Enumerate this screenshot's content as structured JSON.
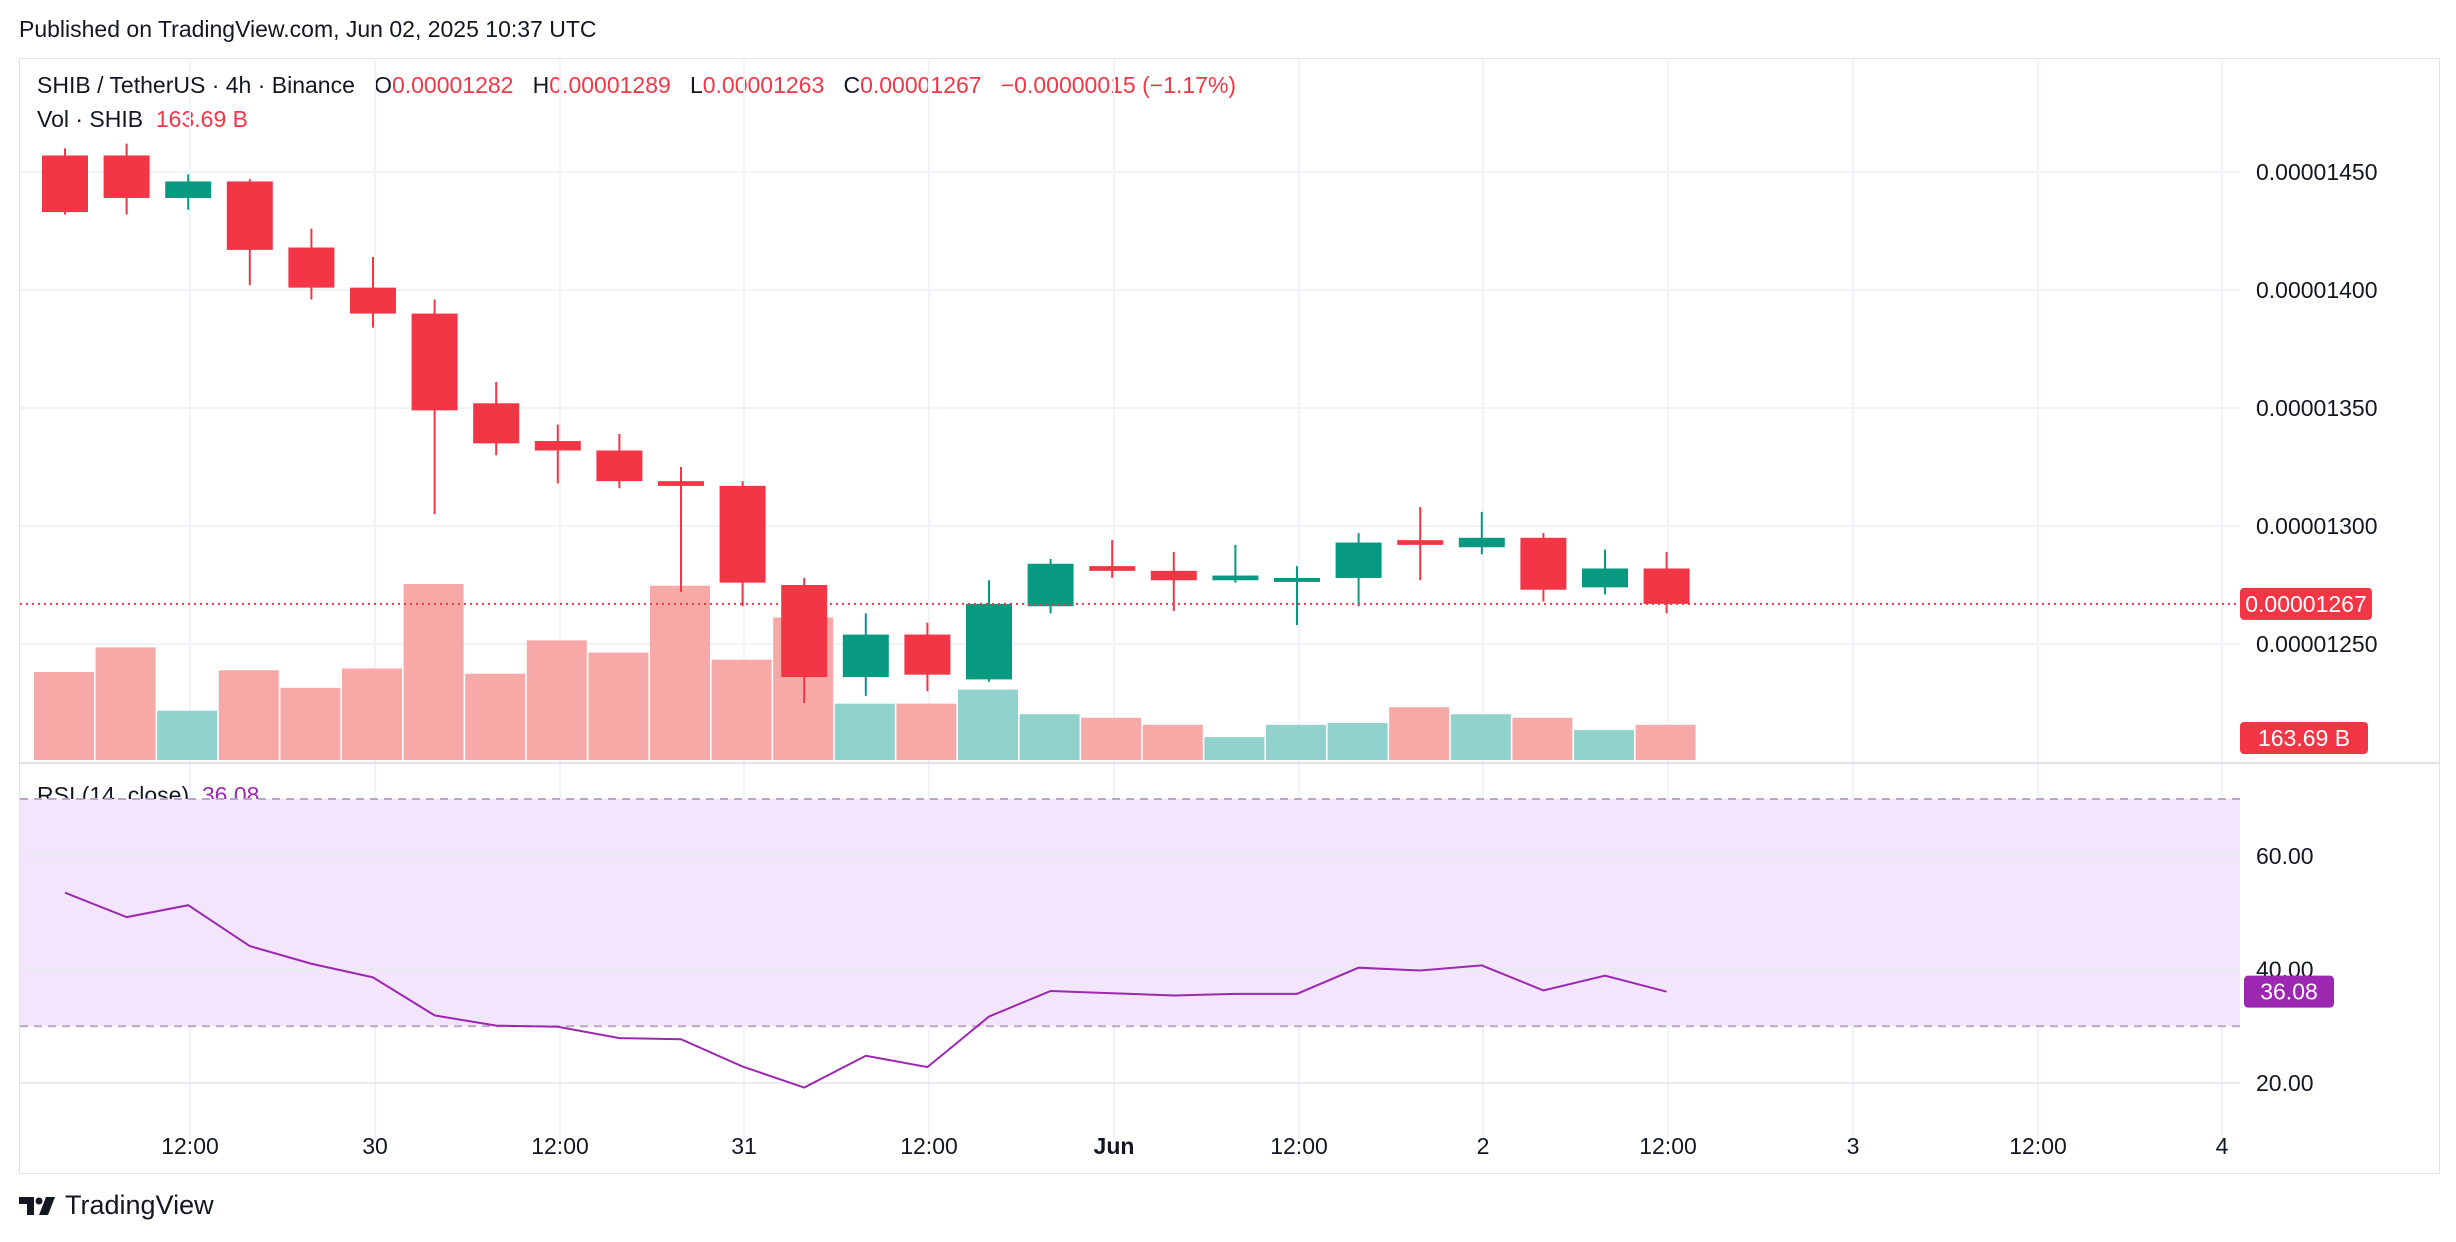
{
  "published": "Published on TradingView.com, Jun 02, 2025 10:37 UTC",
  "header": {
    "symbol": "SHIB / TetherUS · 4h · Binance",
    "o_label": "O",
    "o_value": "0.00001282",
    "h_label": "H",
    "h_value": "0.00001289",
    "l_label": "L",
    "l_value": "0.00001263",
    "c_label": "C",
    "c_value": "0.00001267",
    "change": "−0.00000015 (−1.17%)",
    "vol_label": "Vol · SHIB",
    "vol_value": "163.69 B",
    "rsi_label": "RSI (14, close)",
    "rsi_value": "36.08"
  },
  "brand": "TradingView",
  "colors": {
    "up": "#089981",
    "down": "#f23645",
    "up_vol": "#92d2cc",
    "down_vol": "#f7a9a7",
    "rsi": "#9c27b0",
    "rsi_band": "#f3e5fc"
  },
  "chart_data": [
    {
      "type": "candlestick",
      "title": "SHIB / TetherUS · 4h · Binance",
      "price_ticks": [
        "0.00001450",
        "0.00001400",
        "0.00001350",
        "0.00001300",
        "0.00001250"
      ],
      "price_tick_values": [
        1.45e-05,
        1.4e-05,
        1.35e-05,
        1.3e-05,
        1.25e-05
      ],
      "x_ticks": [
        "12:00",
        "30",
        "12:00",
        "31",
        "12:00",
        "Jun",
        "12:00",
        "2",
        "12:00",
        "3",
        "12:00",
        "4"
      ],
      "last_price_label": "0.00001267",
      "last_price": 1.267e-05,
      "volume_label": "163.69 B",
      "candles": [
        {
          "o": 1.457e-05,
          "h": 1.46e-05,
          "l": 1.432e-05,
          "c": 1.433e-05
        },
        {
          "o": 1.457e-05,
          "h": 1.462e-05,
          "l": 1.432e-05,
          "c": 1.439e-05
        },
        {
          "o": 1.439e-05,
          "h": 1.449e-05,
          "l": 1.434e-05,
          "c": 1.446e-05
        },
        {
          "o": 1.446e-05,
          "h": 1.447e-05,
          "l": 1.402e-05,
          "c": 1.417e-05
        },
        {
          "o": 1.418e-05,
          "h": 1.426e-05,
          "l": 1.396e-05,
          "c": 1.401e-05
        },
        {
          "o": 1.401e-05,
          "h": 1.414e-05,
          "l": 1.384e-05,
          "c": 1.39e-05
        },
        {
          "o": 1.39e-05,
          "h": 1.396e-05,
          "l": 1.305e-05,
          "c": 1.349e-05
        },
        {
          "o": 1.352e-05,
          "h": 1.361e-05,
          "l": 1.33e-05,
          "c": 1.335e-05
        },
        {
          "o": 1.336e-05,
          "h": 1.343e-05,
          "l": 1.318e-05,
          "c": 1.332e-05
        },
        {
          "o": 1.332e-05,
          "h": 1.339e-05,
          "l": 1.316e-05,
          "c": 1.319e-05
        },
        {
          "o": 1.319e-05,
          "h": 1.325e-05,
          "l": 1.272e-05,
          "c": 1.317e-05
        },
        {
          "o": 1.317e-05,
          "h": 1.319e-05,
          "l": 1.266e-05,
          "c": 1.276e-05
        },
        {
          "o": 1.275e-05,
          "h": 1.278e-05,
          "l": 1.225e-05,
          "c": 1.236e-05
        },
        {
          "o": 1.236e-05,
          "h": 1.263e-05,
          "l": 1.228e-05,
          "c": 1.254e-05
        },
        {
          "o": 1.254e-05,
          "h": 1.259e-05,
          "l": 1.23e-05,
          "c": 1.237e-05
        },
        {
          "o": 1.235e-05,
          "h": 1.277e-05,
          "l": 1.234e-05,
          "c": 1.267e-05
        },
        {
          "o": 1.266e-05,
          "h": 1.286e-05,
          "l": 1.263e-05,
          "c": 1.284e-05
        },
        {
          "o": 1.283e-05,
          "h": 1.294e-05,
          "l": 1.278e-05,
          "c": 1.281e-05
        },
        {
          "o": 1.281e-05,
          "h": 1.289e-05,
          "l": 1.264e-05,
          "c": 1.277e-05
        },
        {
          "o": 1.277e-05,
          "h": 1.292e-05,
          "l": 1.276e-05,
          "c": 1.279e-05
        },
        {
          "o": 1.278e-05,
          "h": 1.283e-05,
          "l": 1.258e-05,
          "c": 1.278e-05
        },
        {
          "o": 1.278e-05,
          "h": 1.297e-05,
          "l": 1.266e-05,
          "c": 1.293e-05
        },
        {
          "o": 1.294e-05,
          "h": 1.308e-05,
          "l": 1.277e-05,
          "c": 1.292e-05
        },
        {
          "o": 1.291e-05,
          "h": 1.306e-05,
          "l": 1.288e-05,
          "c": 1.295e-05
        },
        {
          "o": 1.295e-05,
          "h": 1.297e-05,
          "l": 1.268e-05,
          "c": 1.273e-05
        },
        {
          "o": 1.274e-05,
          "h": 1.29e-05,
          "l": 1.271e-05,
          "c": 1.282e-05
        },
        {
          "o": 1.282e-05,
          "h": 1.289e-05,
          "l": 1.263e-05,
          "c": 1.267e-05
        }
      ],
      "volume_pct": [
        50,
        64,
        28,
        51,
        41,
        52,
        100,
        49,
        68,
        61,
        99,
        57,
        81,
        32,
        32,
        40,
        26,
        24,
        20,
        13,
        20,
        21,
        30,
        26,
        24,
        17,
        20
      ]
    },
    {
      "type": "line",
      "title": "RSI (14, close)",
      "ylim": [
        15,
        71
      ],
      "y_ticks": [
        "60.00",
        "40.00",
        "20.00"
      ],
      "y_tick_values": [
        60,
        40,
        20
      ],
      "bands": [
        70,
        30
      ],
      "last_label": "36.08",
      "values": [
        53.5,
        49.2,
        51.3,
        44.1,
        41.0,
        38.6,
        31.9,
        30.1,
        29.9,
        27.9,
        27.7,
        22.9,
        19.2,
        24.8,
        22.8,
        31.7,
        36.2,
        35.8,
        35.4,
        35.7,
        35.7,
        40.3,
        39.8,
        40.7,
        36.3,
        38.9,
        36.08
      ]
    }
  ]
}
